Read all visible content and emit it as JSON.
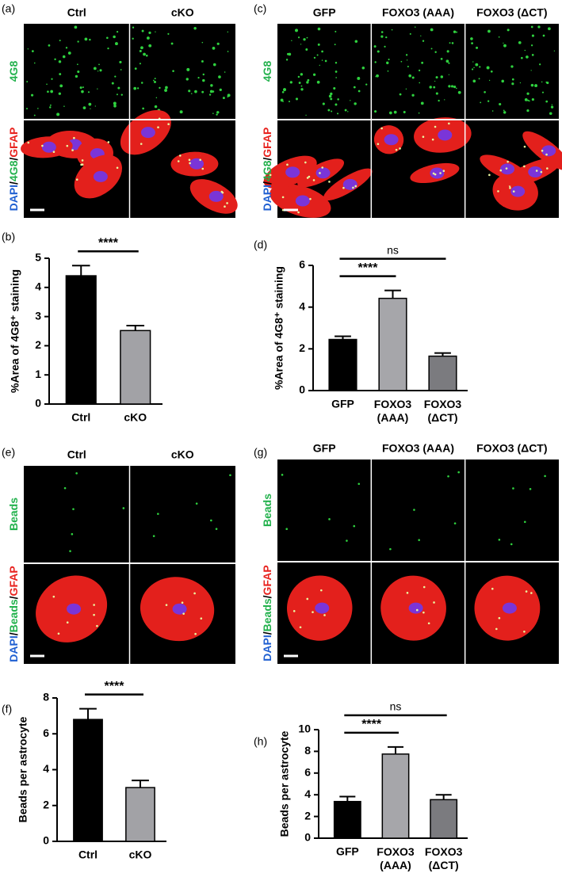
{
  "images": [
    {
      "panel_label": "(a)",
      "columns": [
        "Ctrl",
        "cKO"
      ],
      "rows": [
        [
          {
            "text": "4G8",
            "color": "#22b14c"
          }
        ],
        [
          {
            "text": "DAPI",
            "color": "#1f5fd1"
          },
          {
            "text": "/",
            "color": "#000000"
          },
          {
            "text": "4G8",
            "color": "#22b14c"
          },
          {
            "text": "/",
            "color": "#000000"
          },
          {
            "text": "GFAP",
            "color": "#e8231f"
          }
        ]
      ]
    },
    {
      "panel_label": "(c)",
      "columns": [
        "GFP",
        "FOXO3 (AAA)",
        "FOXO3 (ΔCT)"
      ],
      "rows": [
        [
          {
            "text": "4G8",
            "color": "#22b14c"
          }
        ],
        [
          {
            "text": "DAPI",
            "color": "#1f5fd1"
          },
          {
            "text": "/",
            "color": "#000000"
          },
          {
            "text": "4G8",
            "color": "#22b14c"
          },
          {
            "text": "/",
            "color": "#000000"
          },
          {
            "text": "GFAP",
            "color": "#e8231f"
          }
        ]
      ]
    },
    {
      "panel_label": "(e)",
      "columns": [
        "Ctrl",
        "cKO"
      ],
      "rows": [
        [
          {
            "text": "Beads",
            "color": "#22b14c"
          }
        ],
        [
          {
            "text": "DAPI",
            "color": "#1f5fd1"
          },
          {
            "text": "/",
            "color": "#000000"
          },
          {
            "text": "Beads",
            "color": "#22b14c"
          },
          {
            "text": "/",
            "color": "#000000"
          },
          {
            "text": "GFAP",
            "color": "#e8231f"
          }
        ]
      ]
    },
    {
      "panel_label": "(g)",
      "columns": [
        "GFP",
        "FOXO3 (AAA)",
        "FOXO3 (ΔCT)"
      ],
      "rows": [
        [
          {
            "text": "Beads",
            "color": "#22b14c"
          }
        ],
        [
          {
            "text": "DAPI",
            "color": "#1f5fd1"
          },
          {
            "text": "/",
            "color": "#000000"
          },
          {
            "text": "Beads",
            "color": "#22b14c"
          },
          {
            "text": "/",
            "color": "#000000"
          },
          {
            "text": "GFAP",
            "color": "#e8231f"
          }
        ]
      ]
    }
  ],
  "chart_data": [
    {
      "type": "bar",
      "panel_label": "(b)",
      "y_label": "%Area of 4G8⁺ staining",
      "categories": [
        "Ctrl",
        "cKO"
      ],
      "values": [
        4.4,
        2.52
      ],
      "errors": [
        0.35,
        0.17
      ],
      "colors": [
        "#000000",
        "#a2a2a6"
      ],
      "ylim": [
        0,
        5
      ],
      "yticks": [
        0,
        1,
        2,
        3,
        4,
        5
      ],
      "annotations": [
        {
          "text": "****",
          "between": [
            "Ctrl",
            "cKO"
          ]
        }
      ]
    },
    {
      "type": "bar",
      "panel_label": "(d)",
      "y_label": "%Area of 4G8⁺ staining",
      "categories": [
        "GFP",
        "FOXO3 (AAA)",
        "FOXO3 (ΔCT)"
      ],
      "values": [
        2.45,
        4.42,
        1.65
      ],
      "errors": [
        0.15,
        0.38,
        0.15
      ],
      "colors": [
        "#000000",
        "#a6a6aa",
        "#7b7b7f"
      ],
      "ylim": [
        0,
        6
      ],
      "yticks": [
        0,
        2,
        4,
        6
      ],
      "annotations": [
        {
          "text": "****",
          "between": [
            "GFP",
            "FOXO3 (AAA)"
          ]
        },
        {
          "text": "ns",
          "between": [
            "GFP",
            "FOXO3 (ΔCT)"
          ]
        }
      ]
    },
    {
      "type": "bar",
      "panel_label": "(f)",
      "y_label": "Beads per astrocyte",
      "categories": [
        "Ctrl",
        "cKO"
      ],
      "values": [
        6.8,
        3.0
      ],
      "errors": [
        0.6,
        0.4
      ],
      "colors": [
        "#000000",
        "#a2a2a6"
      ],
      "ylim": [
        0,
        8
      ],
      "yticks": [
        0,
        2,
        4,
        6,
        8
      ],
      "annotations": [
        {
          "text": "****",
          "between": [
            "Ctrl",
            "cKO"
          ]
        }
      ]
    },
    {
      "type": "bar",
      "panel_label": "(h)",
      "y_label": "Beads per astrocyte",
      "categories": [
        "GFP",
        "FOXO3 (AAA)",
        "FOXO3 (ΔCT)"
      ],
      "values": [
        3.38,
        7.75,
        3.55
      ],
      "errors": [
        0.45,
        0.65,
        0.45
      ],
      "colors": [
        "#000000",
        "#a6a6aa",
        "#7b7b7f"
      ],
      "ylim": [
        0,
        10
      ],
      "yticks": [
        0,
        2,
        4,
        6,
        8,
        10
      ],
      "annotations": [
        {
          "text": "****",
          "between": [
            "GFP",
            "FOXO3 (AAA)"
          ]
        },
        {
          "text": "ns",
          "between": [
            "GFP",
            "FOXO3 (ΔCT)"
          ]
        }
      ]
    }
  ]
}
